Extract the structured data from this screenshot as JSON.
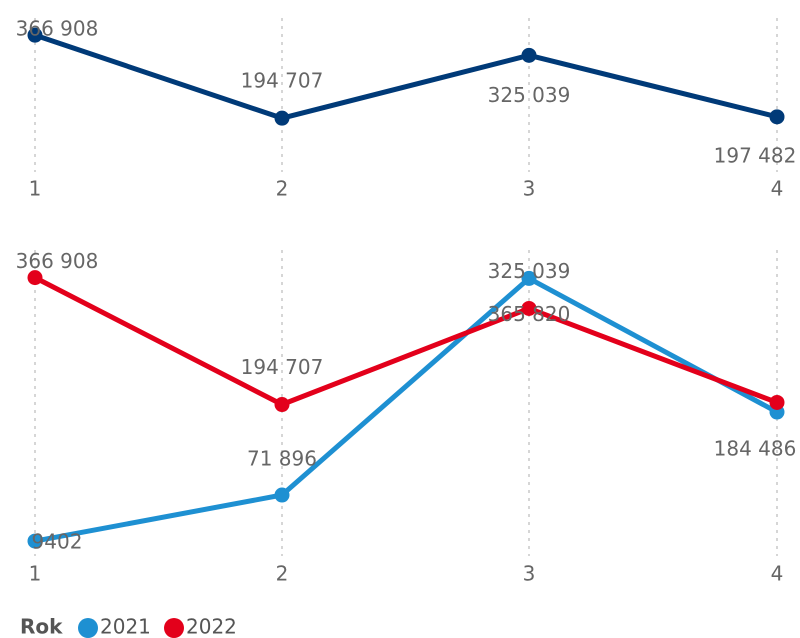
{
  "chart_data": [
    {
      "type": "line",
      "categories": [
        "1",
        "2",
        "3",
        "4"
      ],
      "ylim": [
        0,
        398400
      ],
      "series": [
        {
          "color": "#003a78",
          "values": [
            366908,
            194707,
            325039,
            197482
          ],
          "value_labels": [
            "366 908",
            "194 707",
            "325 039",
            "197 482"
          ]
        }
      ]
    },
    {
      "type": "line",
      "categories": [
        "1",
        "2",
        "3",
        "4"
      ],
      "ylim": [
        0,
        397600
      ],
      "legend_title": "Rok",
      "series": [
        {
          "name": "2021",
          "color": "#1e90d2",
          "values": [
            9402,
            71896,
            365820,
            184486
          ],
          "value_labels": [
            "9402",
            "71 896",
            "365 820",
            "184 486"
          ]
        },
        {
          "name": "2022",
          "color": "#e3001b",
          "values": [
            366908,
            194707,
            325039,
            197482
          ],
          "value_labels": [
            "366 908",
            "194 707",
            "325 039",
            null
          ]
        }
      ]
    }
  ]
}
